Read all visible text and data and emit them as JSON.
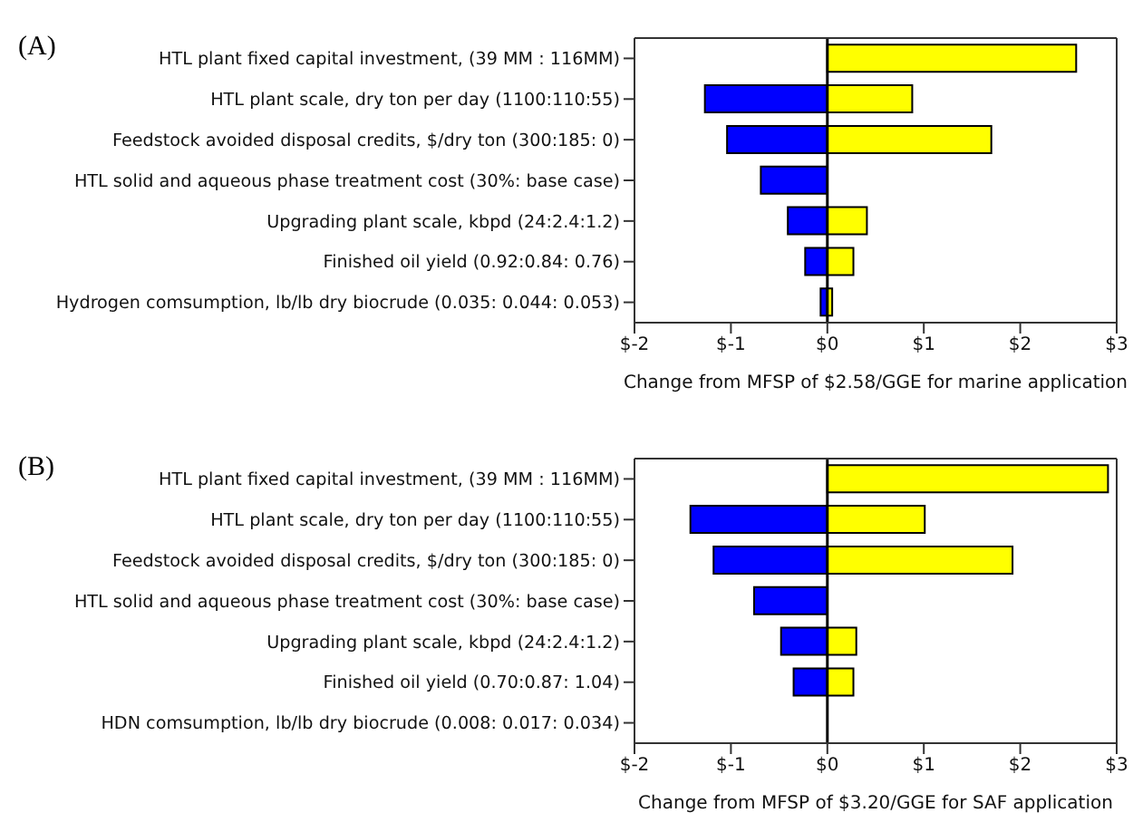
{
  "chart_data": [
    {
      "type": "bar",
      "title": "(A)",
      "orientation": "horizontal",
      "stacked": true,
      "xlabel": "Change from MFSP of $2.58/GGE for marine application",
      "categories": [
        "HTL plant fixed capital investment, (39 MM : 116MM)",
        "HTL plant scale, dry ton per day (1100:110:55)",
        "Feedstock avoided disposal credits, $/dry ton (300:185: 0)",
        "HTL solid and aqueous phase treatment cost (30%: base case)",
        "Upgrading plant scale, kbpd (24:2.4:1.2)",
        "Finished oil yield (0.92:0.84: 0.76)",
        "Hydrogen comsumption, lb/lb dry biocrude (0.035: 0.044: 0.053)"
      ],
      "series": [
        {
          "color": "#0000ff",
          "values": [
            null,
            -1.27,
            -1.04,
            -0.69,
            -0.41,
            -0.23,
            -0.07
          ]
        },
        {
          "color": "#ffff00",
          "values": [
            2.58,
            0.88,
            1.7,
            null,
            0.41,
            0.27,
            0.05
          ]
        }
      ],
      "xlim": [
        -2,
        3
      ],
      "xticks": [
        {
          "value": -2,
          "label": "$-2"
        },
        {
          "value": -1,
          "label": "$-1"
        },
        {
          "value": 0,
          "label": "$0"
        },
        {
          "value": 1,
          "label": "$1"
        },
        {
          "value": 2,
          "label": "$2"
        },
        {
          "value": 3,
          "label": "$3"
        }
      ],
      "ref_lines": [
        {
          "axis": "x",
          "value": 0,
          "color": "#000000"
        }
      ],
      "grid": false,
      "legend": false
    },
    {
      "type": "bar",
      "title": "(B)",
      "orientation": "horizontal",
      "stacked": true,
      "xlabel": "Change from MFSP of $3.20/GGE for SAF application",
      "categories": [
        "HTL plant fixed capital investment, (39 MM : 116MM)",
        "HTL plant scale, dry ton per day (1100:110:55)",
        "Feedstock avoided disposal credits, $/dry ton (300:185: 0)",
        "HTL solid and aqueous phase treatment cost (30%: base case)",
        "Upgrading plant scale, kbpd (24:2.4:1.2)",
        "Finished oil yield (0.70:0.87: 1.04)",
        "HDN comsumption, lb/lb dry biocrude (0.008: 0.017: 0.034)"
      ],
      "series": [
        {
          "color": "#0000ff",
          "values": [
            null,
            -1.42,
            -1.18,
            -0.76,
            -0.48,
            -0.35,
            null
          ]
        },
        {
          "color": "#ffff00",
          "values": [
            2.91,
            1.01,
            1.92,
            null,
            0.3,
            0.27,
            null
          ]
        }
      ],
      "xlim": [
        -2,
        3
      ],
      "xticks": [
        {
          "value": -2,
          "label": "$-2"
        },
        {
          "value": -1,
          "label": "$-1"
        },
        {
          "value": 0,
          "label": "$0"
        },
        {
          "value": 1,
          "label": "$1"
        },
        {
          "value": 2,
          "label": "$2"
        },
        {
          "value": 3,
          "label": "$3"
        }
      ],
      "ref_lines": [
        {
          "axis": "x",
          "value": 0,
          "color": "#000000"
        }
      ],
      "grid": false,
      "legend": false
    }
  ]
}
